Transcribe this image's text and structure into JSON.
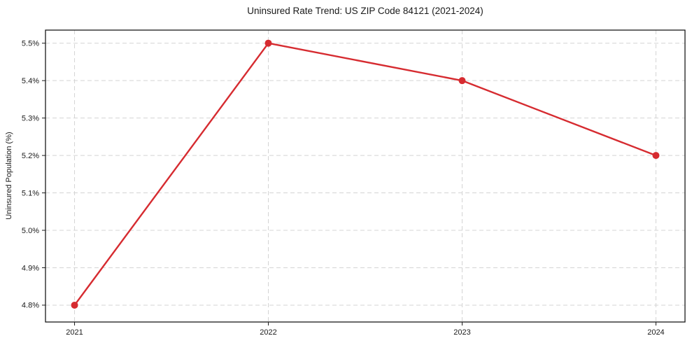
{
  "figure": {
    "title": "Uninsured Rate Trend: US ZIP Code 84121 (2021-2024)",
    "ylabel": "Uninsured Population (%)"
  },
  "chart_data": {
    "type": "line",
    "title": "Uninsured Rate Trend: US ZIP Code 84121 (2021-2024)",
    "xlabel": "",
    "ylabel": "Uninsured Population (%)",
    "x": [
      2021,
      2022,
      2023,
      2024
    ],
    "values": [
      4.8,
      5.5,
      5.4,
      5.2
    ],
    "xticks": [
      2021,
      2022,
      2023,
      2024
    ],
    "xtick_labels": [
      "2021",
      "2022",
      "2023",
      "2024"
    ],
    "yticks": [
      4.8,
      4.9,
      5.0,
      5.1,
      5.2,
      5.3,
      5.4,
      5.5
    ],
    "ytick_labels": [
      "4.8%",
      "4.9%",
      "5.0%",
      "5.1%",
      "5.2%",
      "5.3%",
      "5.4%",
      "5.5%"
    ],
    "xlim": [
      2020.85,
      2024.15
    ],
    "ylim": [
      4.755,
      5.535
    ],
    "grid": true,
    "legend_position": "none",
    "line_color": "#d62b30",
    "marker": "circle",
    "marker_radius": 5,
    "line_width": 2.4
  },
  "style": {
    "background": "#ffffff",
    "grid_color": "#d4d4d4",
    "axis_color": "#1a1a1a",
    "text_color": "#1a1a1a",
    "tick_font_size": 11
  }
}
